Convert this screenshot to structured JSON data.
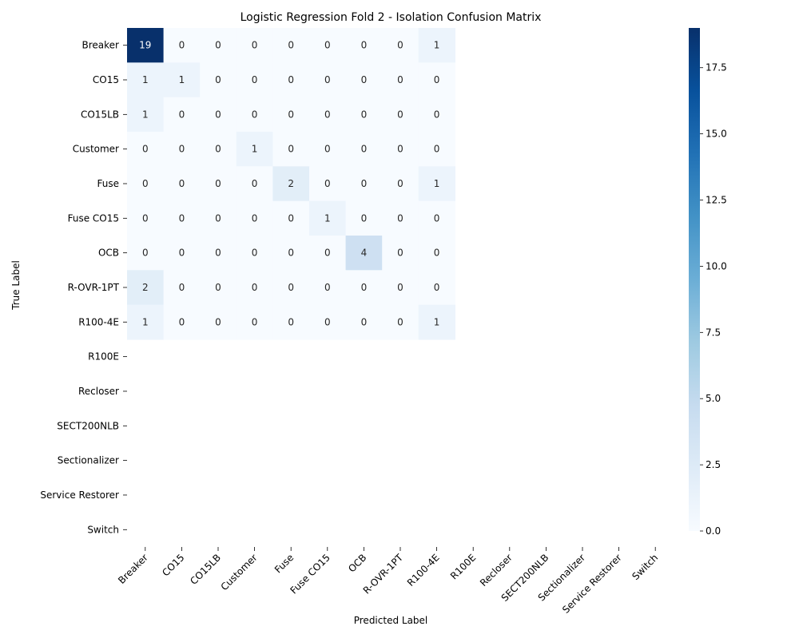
{
  "chart_data": {
    "type": "heatmap",
    "title": "Logistic Regression Fold 2 - Isolation Confusion Matrix",
    "xlabel": "Predicted Label",
    "ylabel": "True Label",
    "x_categories": [
      "Breaker",
      "CO15",
      "CO15LB",
      "Customer",
      "Fuse",
      "Fuse CO15",
      "OCB",
      "R-OVR-1PT",
      "R100-4E",
      "R100E",
      "Recloser",
      "SECT200NLB",
      "Sectionalizer",
      "Service Restorer",
      "Switch"
    ],
    "y_categories": [
      "Breaker",
      "CO15",
      "CO15LB",
      "Customer",
      "Fuse",
      "Fuse CO15",
      "OCB",
      "R-OVR-1PT",
      "R100-4E",
      "R100E",
      "Recloser",
      "SECT200NLB",
      "Sectionalizer",
      "Service Restorer",
      "Switch"
    ],
    "populated_columns": 9,
    "values": [
      [
        19,
        0,
        0,
        0,
        0,
        0,
        0,
        0,
        1
      ],
      [
        1,
        1,
        0,
        0,
        0,
        0,
        0,
        0,
        0
      ],
      [
        1,
        0,
        0,
        0,
        0,
        0,
        0,
        0,
        0
      ],
      [
        0,
        0,
        0,
        1,
        0,
        0,
        0,
        0,
        0
      ],
      [
        0,
        0,
        0,
        0,
        2,
        0,
        0,
        0,
        1
      ],
      [
        0,
        0,
        0,
        0,
        0,
        1,
        0,
        0,
        0
      ],
      [
        0,
        0,
        0,
        0,
        0,
        0,
        4,
        0,
        0
      ],
      [
        2,
        0,
        0,
        0,
        0,
        0,
        0,
        0,
        0
      ],
      [
        1,
        0,
        0,
        0,
        0,
        0,
        0,
        0,
        1
      ]
    ],
    "colorbar": {
      "colormap": "Blues",
      "range": [
        0,
        19
      ],
      "ticks": [
        "0.0",
        "2.5",
        "5.0",
        "7.5",
        "10.0",
        "12.5",
        "15.0",
        "17.5"
      ],
      "tick_values": [
        0,
        2.5,
        5,
        7.5,
        10,
        12.5,
        15,
        17.5
      ]
    },
    "colors": {
      "low": "#f7fbff",
      "high": "#08306b",
      "text_on_dark": "#ffffff",
      "text_on_light": "#262626"
    },
    "grid": false,
    "legend": "colorbar-right"
  }
}
